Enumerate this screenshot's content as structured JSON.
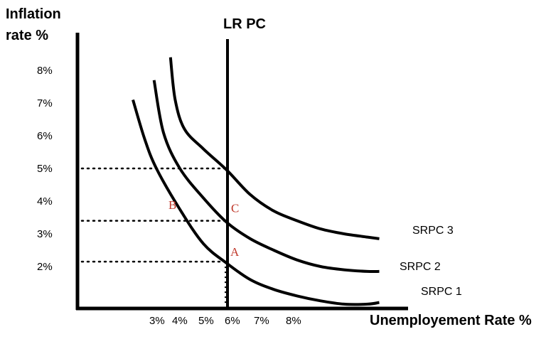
{
  "chart_data": {
    "type": "line",
    "ylabel_line1": "Inflation",
    "ylabel_line2": "rate %",
    "xlabel": "Unemployement Rate %",
    "vertical_line_label": "LR PC",
    "y_ticks": [
      "8%",
      "7%",
      "6%",
      "5%",
      "4%",
      "3%",
      "2%"
    ],
    "x_ticks": [
      "3%",
      "4%",
      "5%",
      "6%",
      "7%",
      "8%"
    ],
    "series": [
      {
        "name": "SRPC 1",
        "x": [
          2.0,
          2.5,
          3.0,
          4.0,
          5.0,
          6.0,
          7.0,
          8.0,
          9.0,
          10.0,
          11.0,
          12.0,
          12.5
        ],
        "y": [
          7.1,
          5.9,
          5.0,
          3.75,
          2.7,
          2.1,
          1.6,
          1.3,
          1.1,
          0.95,
          0.85,
          0.85,
          0.9
        ]
      },
      {
        "name": "SRPC 2",
        "x": [
          2.9,
          3.3,
          4.0,
          5.0,
          6.0,
          7.0,
          8.0,
          9.0,
          10.0,
          11.0,
          12.0,
          12.5
        ],
        "y": [
          7.7,
          6.1,
          5.0,
          4.1,
          3.35,
          2.85,
          2.5,
          2.2,
          2.0,
          1.9,
          1.85,
          1.85
        ]
      },
      {
        "name": "SRPC 3",
        "x": [
          3.6,
          3.8,
          4.2,
          5.0,
          6.0,
          7.0,
          8.0,
          9.0,
          10.0,
          11.0,
          12.0,
          12.5
        ],
        "y": [
          8.4,
          7.1,
          6.2,
          5.6,
          4.95,
          4.2,
          3.7,
          3.4,
          3.15,
          3.0,
          2.9,
          2.85
        ]
      }
    ],
    "lr_pc_x": 6.0,
    "reference_levels": [
      {
        "y": 5.0,
        "x_end": 6.0
      },
      {
        "y": 3.4,
        "x_end": 6.0
      },
      {
        "y": 2.15,
        "x_end": 6.0
      }
    ],
    "points": [
      {
        "label": "A",
        "x": 6.0,
        "y": 2.15
      },
      {
        "label": "B",
        "x": 4.0,
        "y": 3.5
      },
      {
        "label": "C",
        "x": 6.0,
        "y": 3.4
      }
    ]
  }
}
